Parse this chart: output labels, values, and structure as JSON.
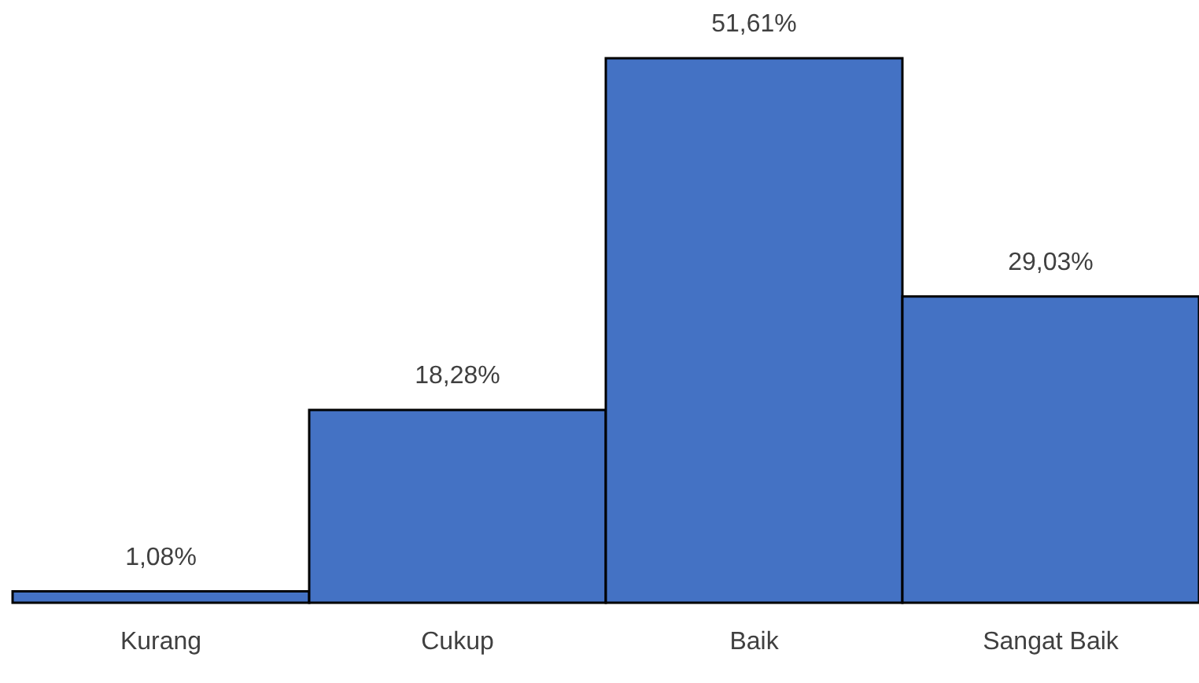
{
  "chart_data": {
    "type": "bar",
    "categories": [
      "Kurang",
      "Cukup",
      "Baik",
      "Sangat Baik"
    ],
    "values": [
      1.08,
      18.28,
      51.61,
      29.03
    ],
    "value_labels": [
      "1,08%",
      "18,28%",
      "51,61%",
      "29,03%"
    ],
    "color": "#4472c4"
  }
}
